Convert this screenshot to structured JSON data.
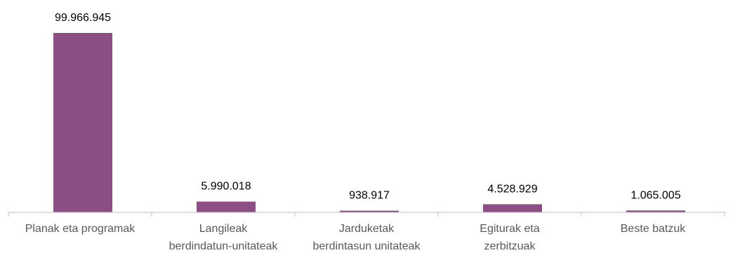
{
  "chart_data": {
    "type": "bar",
    "categories": [
      [
        "Planak eta programak"
      ],
      [
        "Langileak",
        "berdindatun-unitateak"
      ],
      [
        "Jarduketak",
        "berdintasun unitateak"
      ],
      [
        "Egiturak eta",
        "zerbitzuak"
      ],
      [
        "Beste batzuk"
      ]
    ],
    "values": [
      99966945,
      5990018,
      938917,
      4528929,
      1065005
    ],
    "value_labels": [
      "99.966.945",
      "5.990.018",
      "938.917",
      "4.528.929",
      "1.065.005"
    ],
    "title": "",
    "xlabel": "",
    "ylabel": "",
    "ylim": [
      0,
      100000000
    ],
    "grid": false,
    "legend": "none",
    "colors": {
      "bar": "#8B4F86",
      "axis": "#BFBFBF"
    }
  }
}
